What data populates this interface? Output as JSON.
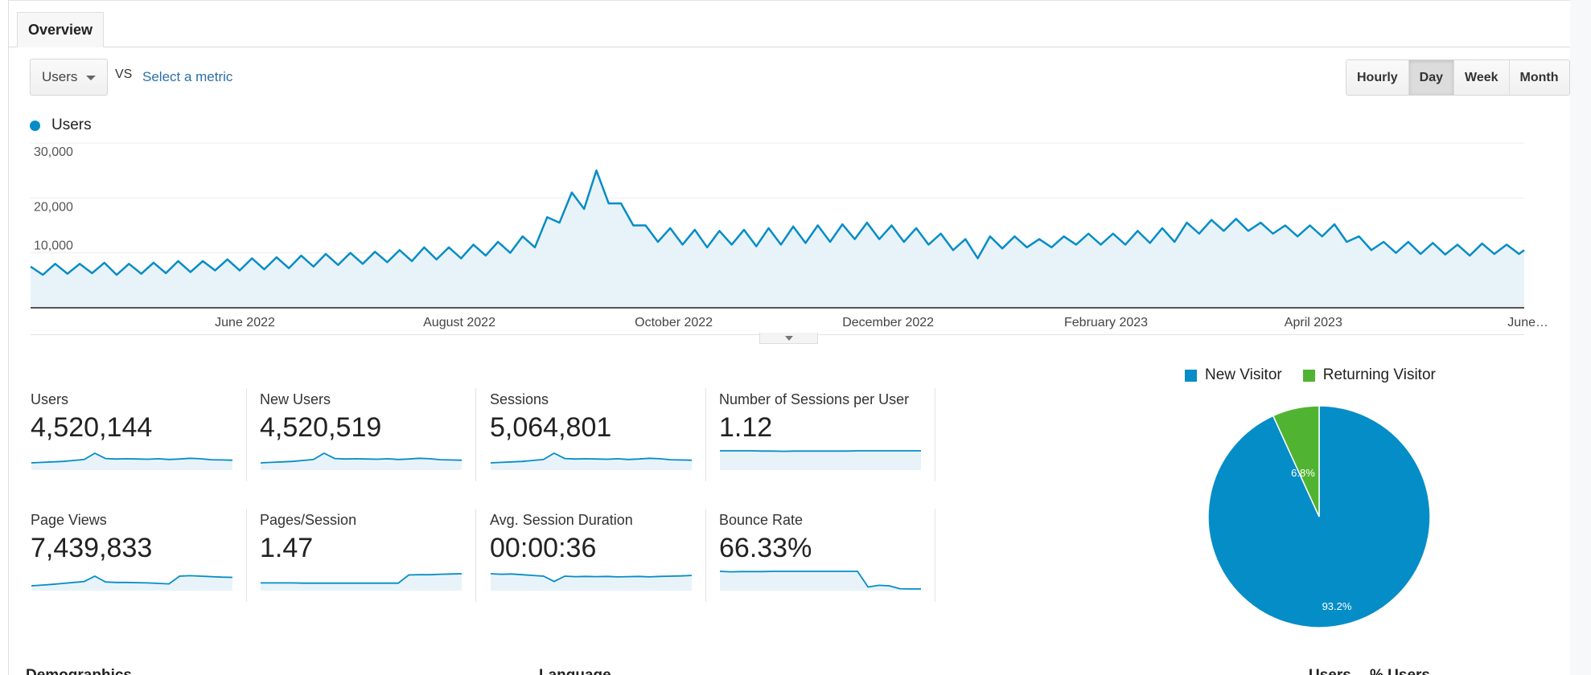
{
  "tabs": [
    {
      "label": "Overview"
    }
  ],
  "toolbar": {
    "metric": "Users",
    "vs": "VS",
    "select_metric": "Select a metric",
    "granularity": [
      {
        "label": "Hourly",
        "active": false
      },
      {
        "label": "Day",
        "active": true
      },
      {
        "label": "Week",
        "active": false
      },
      {
        "label": "Month",
        "active": false
      }
    ]
  },
  "colors": {
    "primary": "#058dc7",
    "fill": "#e8f3f9",
    "secondary": "#50b432"
  },
  "chart_data": [
    {
      "type": "area",
      "title": "",
      "legend": [
        "Users"
      ],
      "xlabel": "",
      "ylabel": "",
      "x_start": "2022-04-01",
      "x_end": "2023-05-31",
      "interval_days": 3.5,
      "ylim": [
        0,
        30000
      ],
      "yticks": [
        "10,000",
        "20,000",
        "30,000"
      ],
      "ytick_values": [
        10000,
        20000,
        30000
      ],
      "xticks": [
        {
          "label": "June 2022",
          "day": 61
        },
        {
          "label": "August 2022",
          "day": 122
        },
        {
          "label": "October 2022",
          "day": 183
        },
        {
          "label": "December 2022",
          "day": 244
        },
        {
          "label": "February 2023",
          "day": 306
        },
        {
          "label": "April 2023",
          "day": 365
        },
        {
          "label": "June…",
          "day": 425
        }
      ],
      "grid": true,
      "values": [
        7500,
        6000,
        8000,
        6200,
        8000,
        6300,
        8200,
        6000,
        8000,
        6200,
        8200,
        6300,
        8500,
        6500,
        8500,
        6800,
        8800,
        6800,
        9000,
        7000,
        9200,
        7200,
        9500,
        7500,
        9800,
        7800,
        10000,
        8000,
        10200,
        8300,
        10500,
        8500,
        11000,
        8800,
        11000,
        9000,
        11500,
        9500,
        12000,
        10000,
        13000,
        11000,
        16500,
        15500,
        21000,
        18000,
        25000,
        19000,
        19000,
        15000,
        15000,
        12000,
        14500,
        11500,
        14200,
        11000,
        14000,
        11500,
        14200,
        11200,
        14500,
        11500,
        14800,
        11800,
        15000,
        12000,
        15200,
        12500,
        15500,
        12500,
        15000,
        12000,
        14500,
        11500,
        13500,
        10500,
        12500,
        9000,
        13000,
        10800,
        13000,
        11000,
        12500,
        11000,
        13000,
        11500,
        13500,
        11500,
        13500,
        11500,
        14000,
        11800,
        14500,
        12000,
        15500,
        13500,
        16000,
        14000,
        16200,
        14000,
        15500,
        13500,
        15000,
        13000,
        15000,
        13000,
        15200,
        12000,
        13000,
        10500,
        12000,
        10000,
        12000,
        9800,
        11800,
        9700,
        11500,
        9500,
        11700,
        9800,
        11500,
        9800,
        10500
      ]
    },
    {
      "type": "pie",
      "legend": [
        "New Visitor",
        "Returning Visitor"
      ],
      "slices": [
        {
          "label": "New Visitor",
          "value": 93.2,
          "text": "93.2%",
          "color": "#058dc7"
        },
        {
          "label": "Returning Visitor",
          "value": 6.8,
          "text": "6.8%",
          "color": "#50b432"
        }
      ]
    }
  ],
  "metrics": [
    {
      "label": "Users",
      "value": "4,520,144",
      "spark": [
        3,
        3.2,
        3.4,
        3.6,
        4,
        4.4,
        7,
        4.8,
        4.6,
        4.7,
        4.6,
        4.5,
        4.7,
        4.4,
        4.6,
        4.9,
        4.7,
        4.3,
        4.2,
        4.1
      ]
    },
    {
      "label": "New Users",
      "value": "4,520,519",
      "spark": [
        3,
        3.2,
        3.4,
        3.6,
        4,
        4.4,
        7,
        4.8,
        4.6,
        4.7,
        4.6,
        4.5,
        4.7,
        4.4,
        4.6,
        4.9,
        4.7,
        4.3,
        4.2,
        4.1
      ]
    },
    {
      "label": "Sessions",
      "value": "5,064,801",
      "spark": [
        3,
        3.2,
        3.4,
        3.6,
        4,
        4.4,
        7,
        4.8,
        4.6,
        4.7,
        4.6,
        4.5,
        4.7,
        4.4,
        4.6,
        4.9,
        4.7,
        4.3,
        4.2,
        4.1
      ]
    },
    {
      "label": "Number of Sessions per User",
      "value": "1.12",
      "spark": [
        8,
        8,
        8,
        8,
        7.9,
        7.9,
        7.8,
        7.9,
        7.9,
        7.9,
        7.9,
        7.9,
        7.9,
        8,
        8,
        8,
        8,
        8,
        8,
        8
      ]
    },
    {
      "label": "Page Views",
      "value": "7,439,833",
      "spark": [
        2,
        2.3,
        2.6,
        3,
        3.4,
        3.8,
        6,
        3.6,
        3.4,
        3.4,
        3.3,
        3.2,
        3,
        2.8,
        6,
        6.2,
        6,
        5.8,
        5.6,
        5.5
      ]
    },
    {
      "label": "Pages/Session",
      "value": "1.47",
      "spark": [
        3.2,
        3.2,
        3.2,
        3.2,
        3.1,
        3.1,
        3.1,
        3.1,
        3.1,
        3.1,
        3.1,
        3.1,
        3.1,
        3.1,
        6.5,
        6.6,
        6.6,
        6.8,
        6.9,
        7
      ]
    },
    {
      "label": "Avg. Session Duration",
      "value": "00:00:36",
      "spark": [
        7,
        6.8,
        6.9,
        6.6,
        6.3,
        6,
        3.8,
        6,
        5.8,
        5.9,
        5.8,
        5.9,
        5.7,
        5.8,
        5.9,
        5.7,
        5.9,
        6,
        6.1,
        6.3
      ]
    },
    {
      "label": "Bounce Rate",
      "value": "66.33%",
      "spark": [
        8,
        7.8,
        7.9,
        7.9,
        7.9,
        8,
        8,
        8,
        8,
        8,
        8,
        8,
        8,
        8,
        1.5,
        2.2,
        2,
        0.8,
        0.7,
        0.7
      ]
    }
  ],
  "bottom": {
    "demographics": "Demographics",
    "language": "Language",
    "users": "Users",
    "pct_users": "% Users"
  }
}
